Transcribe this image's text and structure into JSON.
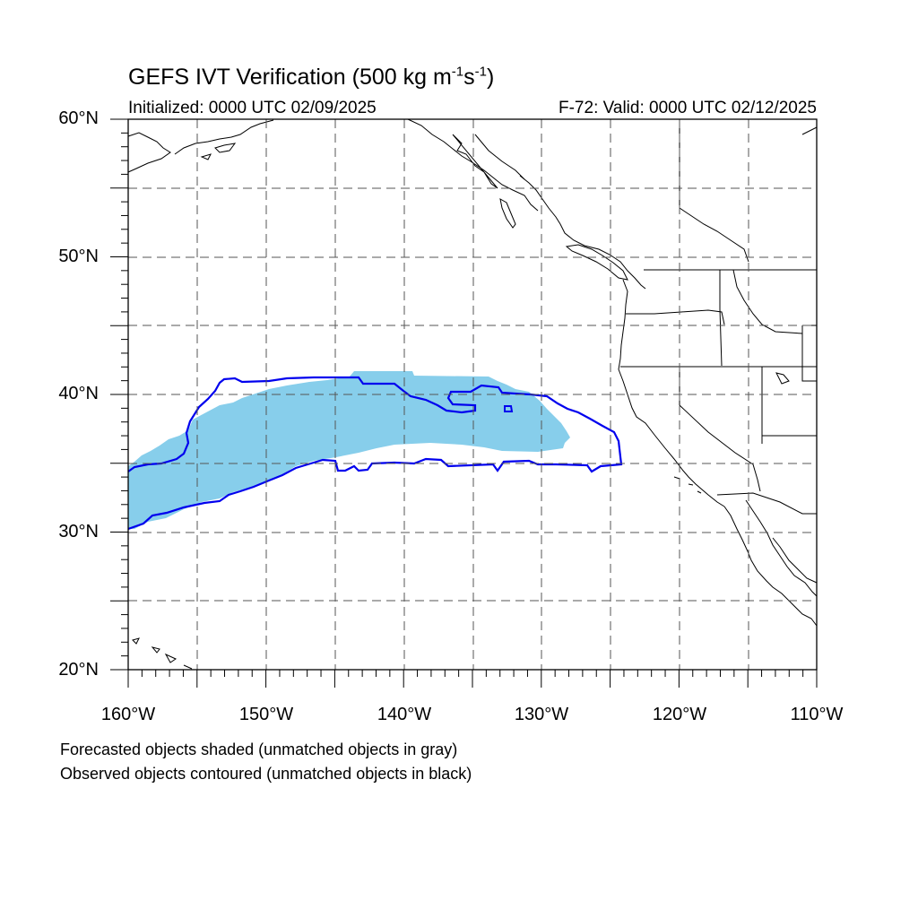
{
  "title": {
    "main": "GEFS IVT Verification (500 kg m",
    "sup1": "-1",
    "mid": "s",
    "sup2": "-1",
    "end": ")"
  },
  "initialized": "Initialized: 0000 UTC 02/09/2025",
  "valid": "F-72: Valid: 0000 UTC 02/12/2025",
  "lat_labels": [
    "60°N",
    "50°N",
    "40°N",
    "30°N",
    "20°N"
  ],
  "lon_labels": [
    "160°W",
    "150°W",
    "140°W",
    "130°W",
    "120°W",
    "110°W"
  ],
  "footnotes": {
    "line1": "Forecasted objects shaded (unmatched objects in gray)",
    "line2": "Observed objects contoured (unmatched objects in black)"
  },
  "map_extent": {
    "lon_min": -160,
    "lon_max": -110,
    "lat_min": 20,
    "lat_max": 60
  },
  "grid_spacing_deg": 5,
  "colors": {
    "forecast_fill": "#87ceeb",
    "observed_contour": "#0000ee",
    "coastline": "#000000",
    "grid": "#555555"
  }
}
